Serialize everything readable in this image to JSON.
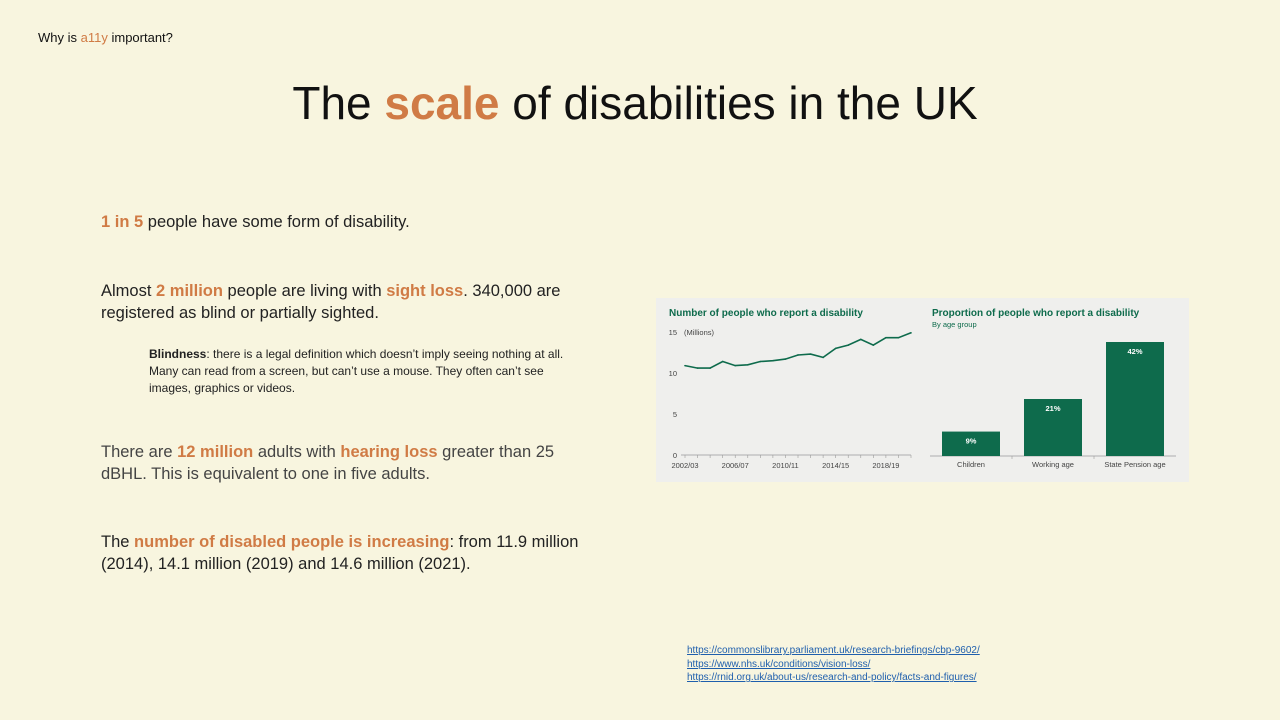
{
  "header": {
    "prefix": "Why is ",
    "highlight": "a11y",
    "suffix": " important?"
  },
  "title": {
    "before": "The ",
    "highlight": "scale",
    "after": " of disabilities in the UK"
  },
  "p1": {
    "highlight": "1 in 5",
    "rest": " people have some form of disability."
  },
  "p2": {
    "t1": "Almost ",
    "h1": "2 million",
    "t2": " people are living with ",
    "h2": "sight loss",
    "t3": ". 340,000 are registered as blind or partially sighted."
  },
  "note": {
    "bold": "Blindness",
    "text": ": there is a legal definition which doesn’t imply seeing nothing at all. Many can read from a screen, but can’t use a mouse.   They often can’t see images, graphics or videos."
  },
  "p3": {
    "t1": "There are ",
    "h1": "12 million",
    "t2": " adults with ",
    "h2": "hearing loss",
    "t3": " greater than 25 dBHL. This is equivalent to one in five adults."
  },
  "p4": {
    "t1": "The ",
    "h1": "number of disabled people is increasing",
    "t2": ": from 11.9 million (2014), 14.1 million (2019) and 14.6 million (2021)."
  },
  "colors": {
    "accent": "#d07b45",
    "chart_green": "#0e6b4c",
    "background": "#f8f5df"
  },
  "chart_data": [
    {
      "type": "line",
      "title": "Number of people who report a disability",
      "ylabel": "(Millions)",
      "ylim": [
        0,
        15
      ],
      "yticks": [
        0,
        5,
        10,
        15
      ],
      "xtick_labels": [
        "2002/03",
        "2006/07",
        "2010/11",
        "2014/15",
        "2018/19"
      ],
      "x": [
        "2002/03",
        "2003/04",
        "2004/05",
        "2005/06",
        "2006/07",
        "2007/08",
        "2008/09",
        "2009/10",
        "2010/11",
        "2011/12",
        "2012/13",
        "2013/14",
        "2014/15",
        "2015/16",
        "2016/17",
        "2017/18",
        "2018/19",
        "2019/20",
        "2020/21"
      ],
      "values": [
        10.9,
        10.6,
        10.6,
        11.4,
        10.9,
        11.0,
        11.4,
        11.5,
        11.7,
        12.2,
        12.3,
        11.9,
        13.0,
        13.4,
        14.1,
        13.4,
        14.3,
        14.3,
        14.9
      ]
    },
    {
      "type": "bar",
      "title": "Proportion of people who report a disability",
      "subtitle": "By age group",
      "categories": [
        "Children",
        "Working age",
        "State Pension age"
      ],
      "values": [
        9,
        21,
        42
      ],
      "data_labels": [
        "9%",
        "21%",
        "42%"
      ],
      "ylim": [
        0,
        42
      ]
    }
  ],
  "links": [
    "https://commonslibrary.parliament.uk/research-briefings/cbp-9602/",
    "https://www.nhs.uk/conditions/vision-loss/",
    "https://rnid.org.uk/about-us/research-and-policy/facts-and-figures/"
  ]
}
